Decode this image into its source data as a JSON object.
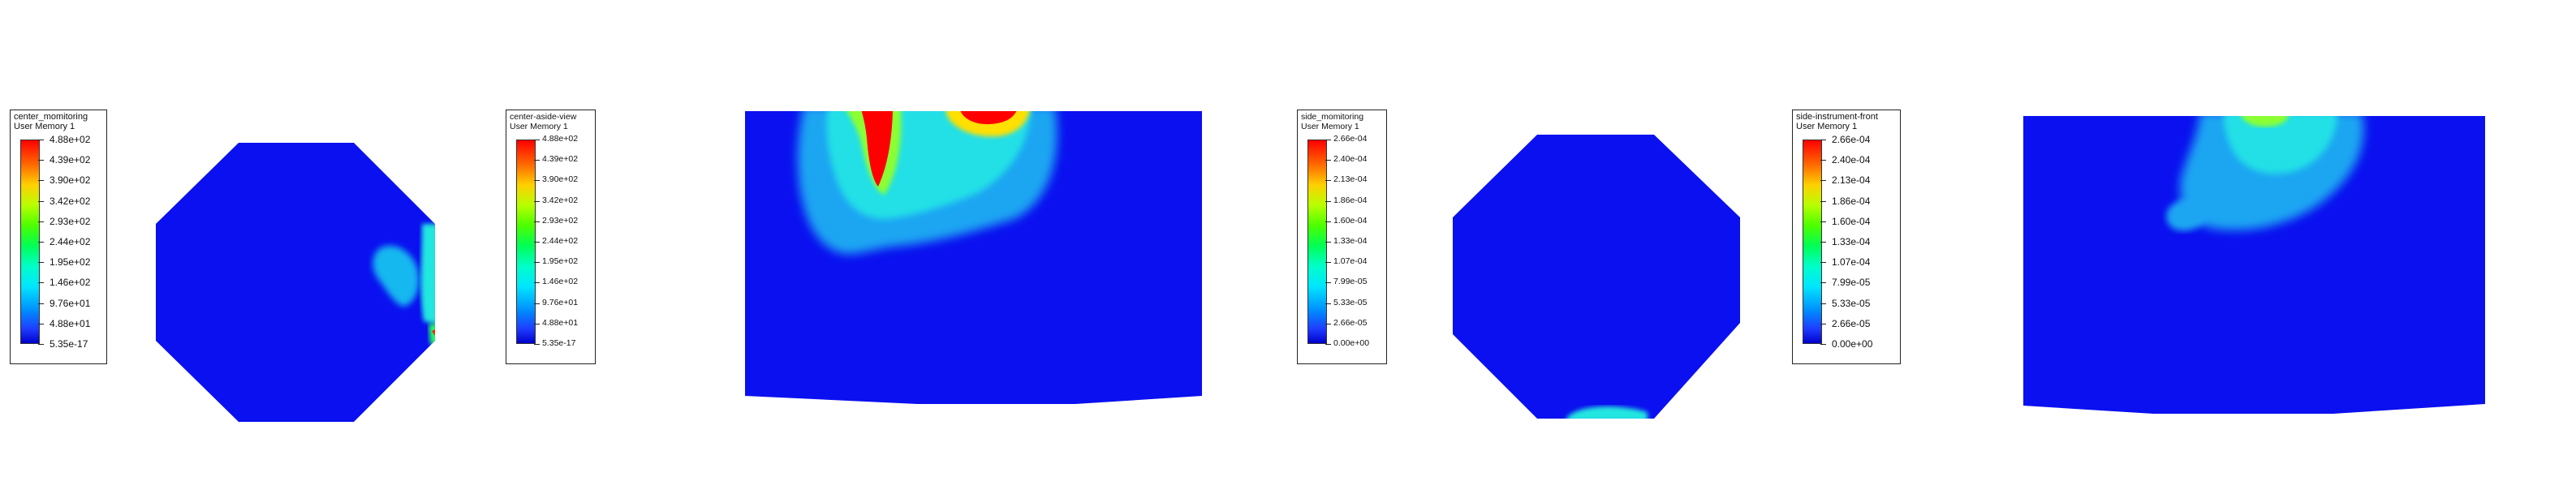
{
  "colors": {
    "background": "#ffffff",
    "field_base": "#0a10ef",
    "max": "#ff0000",
    "min": "#0000cc"
  },
  "chart_data": [
    {
      "type": "heatmap",
      "title": "center_momitoring",
      "subtitle": "User Memory 1",
      "legend_ticks": [
        "4.88e+02",
        "4.39e+02",
        "3.90e+02",
        "3.42e+02",
        "2.93e+02",
        "2.44e+02",
        "1.95e+02",
        "1.46e+02",
        "9.76e+01",
        "4.88e+01",
        "5.35e-17"
      ],
      "range": [
        5.35e-17,
        488
      ],
      "view": "top (octagonal section)"
    },
    {
      "type": "heatmap",
      "title": "center-aside-view",
      "subtitle": "User Memory 1",
      "legend_ticks": [
        "4.88e+02",
        "4.39e+02",
        "3.90e+02",
        "3.42e+02",
        "2.93e+02",
        "2.44e+02",
        "1.95e+02",
        "1.46e+02",
        "9.76e+01",
        "4.88e+01",
        "5.35e-17"
      ],
      "range": [
        5.35e-17,
        488
      ],
      "view": "side"
    },
    {
      "type": "heatmap",
      "title": "side_momitoring",
      "subtitle": "User Memory 1",
      "legend_ticks": [
        "2.66e-04",
        "2.40e-04",
        "2.13e-04",
        "1.86e-04",
        "1.60e-04",
        "1.33e-04",
        "1.07e-04",
        "7.99e-05",
        "5.33e-05",
        "2.66e-05",
        "0.00e+00"
      ],
      "range": [
        0,
        0.000266
      ],
      "view": "top (octagonal section)"
    },
    {
      "type": "heatmap",
      "title": "side-instrument-front",
      "subtitle": "User Memory 1",
      "legend_ticks": [
        "2.66e-04",
        "2.40e-04",
        "2.13e-04",
        "1.86e-04",
        "1.60e-04",
        "1.33e-04",
        "1.07e-04",
        "7.99e-05",
        "5.33e-05",
        "2.66e-05",
        "0.00e+00"
      ],
      "range": [
        0,
        0.000266
      ],
      "view": "front"
    }
  ]
}
